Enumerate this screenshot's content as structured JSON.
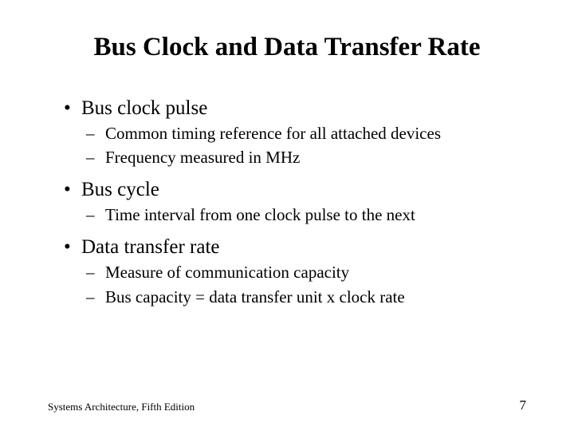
{
  "slide": {
    "title": "Bus Clock and Data Transfer Rate",
    "bullets": [
      {
        "text": "Bus clock pulse",
        "sub": [
          "Common timing reference for all attached devices",
          "Frequency measured in MHz"
        ]
      },
      {
        "text": "Bus cycle",
        "sub": [
          "Time interval from one clock pulse to the next"
        ]
      },
      {
        "text": "Data transfer rate",
        "sub": [
          "Measure of communication capacity",
          "Bus capacity = data transfer unit x clock rate"
        ]
      }
    ],
    "footer_left": "Systems Architecture, Fifth Edition",
    "page_number": "7"
  },
  "style": {
    "background_color": "#ffffff",
    "text_color": "#000000",
    "title_fontsize": 33,
    "bullet_l1_fontsize": 25,
    "bullet_l2_fontsize": 21,
    "footer_fontsize": 13
  }
}
